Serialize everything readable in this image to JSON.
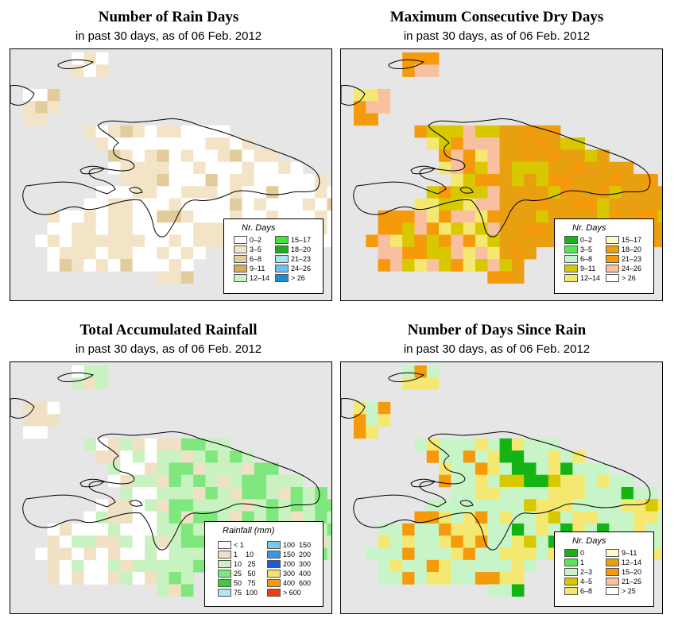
{
  "panels": [
    {
      "id": "rain-days",
      "title": "Number of Rain Days",
      "subtitle": "in past 30 days, as of  06 Feb. 2012",
      "legend": {
        "title": "Nr. Days",
        "items": [
          {
            "label": "0–2",
            "color": "#ffffff"
          },
          {
            "label": "3–5",
            "color": "#f3e4c8"
          },
          {
            "label": "6–8",
            "color": "#e2cc9c"
          },
          {
            "label": "9–11",
            "color": "#d2b05a"
          },
          {
            "label": "12–14",
            "color": "#c8f2c8"
          },
          {
            "label": "15–17",
            "color": "#3ee63e"
          },
          {
            "label": "18–20",
            "color": "#1faa1f"
          },
          {
            "label": "21–23",
            "color": "#a6e4f2"
          },
          {
            "label": "24–26",
            "color": "#6cc4ee"
          },
          {
            "label": "> 26",
            "color": "#1a8cd8"
          }
        ]
      }
    },
    {
      "id": "dry-days",
      "title": "Maximum Consecutive Dry Days",
      "subtitle": "in past 30 days, as of  06 Feb. 2012",
      "legend": {
        "title": "Nr. Days",
        "items": [
          {
            "label": "0–2",
            "color": "#17b517"
          },
          {
            "label": "3–5",
            "color": "#54e654"
          },
          {
            "label": "6–8",
            "color": "#c8f5c8"
          },
          {
            "label": "9–11",
            "color": "#d8c800"
          },
          {
            "label": "12–14",
            "color": "#f5e870"
          },
          {
            "label": "15–17",
            "color": "#fffac8"
          },
          {
            "label": "18–20",
            "color": "#e8a010"
          },
          {
            "label": "21–23",
            "color": "#f59a0a"
          },
          {
            "label": "24–26",
            "color": "#f8c0a0"
          },
          {
            "label": "> 26",
            "color": "#ffffff"
          }
        ]
      }
    },
    {
      "id": "rainfall",
      "title": "Total Accumulated Rainfall",
      "subtitle": "in past 30 days, as of  06 Feb. 2012",
      "legend": {
        "title": "Rainfall (mm)",
        "items": [
          {
            "label": "< 1",
            "color": "#ffffff"
          },
          {
            "label": "1    10",
            "color": "#f0e0c4"
          },
          {
            "label": "10   25",
            "color": "#c8f2c0"
          },
          {
            "label": "25   50",
            "color": "#7ee87e"
          },
          {
            "label": "50   75",
            "color": "#3ecc3e"
          },
          {
            "label": "75  100",
            "color": "#aee8f2"
          },
          {
            "label": "100  150",
            "color": "#78c8ee"
          },
          {
            "label": "150  200",
            "color": "#3c96e6"
          },
          {
            "label": "200  300",
            "color": "#1e5ad8"
          },
          {
            "label": "300  400",
            "color": "#f5e070"
          },
          {
            "label": "400  600",
            "color": "#f59a10"
          },
          {
            "label": "> 600",
            "color": "#f03c14"
          }
        ]
      }
    },
    {
      "id": "since-rain",
      "title": "Number of Days Since Rain",
      "subtitle": "in past 30 days, as of  06 Feb. 2012",
      "legend": {
        "title": "Nr. Days",
        "items": [
          {
            "label": "0",
            "color": "#14b414"
          },
          {
            "label": "1",
            "color": "#54e654"
          },
          {
            "label": "2–3",
            "color": "#c8f5c8"
          },
          {
            "label": "4–5",
            "color": "#d8c800"
          },
          {
            "label": "6–8",
            "color": "#f5e870"
          },
          {
            "label": "9–11",
            "color": "#fffac8"
          },
          {
            "label": "12–14",
            "color": "#e8a010"
          },
          {
            "label": "15–20",
            "color": "#f59a0a"
          },
          {
            "label": "21–25",
            "color": "#f8c0a0"
          },
          {
            "label": "> 25",
            "color": "#ffffff"
          }
        ]
      }
    }
  ],
  "colors": {
    "sea": "#e6e6e6",
    "coast": "#000000"
  }
}
